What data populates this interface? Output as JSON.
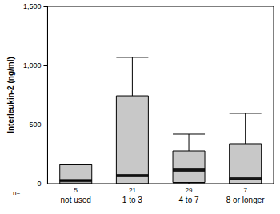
{
  "chart_data": {
    "type": "boxplot",
    "y_label": "Interleukin-2 (ng/ml)",
    "categories": [
      "not used",
      "1 to 3",
      "4 to 7",
      "8 or longer"
    ],
    "count_label": "n=",
    "counts": [
      5,
      21,
      29,
      7
    ],
    "boxes": [
      [
        0,
        0,
        25,
        160,
        160
      ],
      [
        0,
        0,
        68,
        743,
        1068
      ],
      [
        0,
        10,
        115,
        277,
        419
      ],
      [
        0,
        0,
        40,
        338,
        595
      ]
    ],
    "color": "#c8c8c8",
    "ylim": [
      0,
      1500
    ],
    "yticks": [
      0,
      500,
      {
        "value": 1000,
        "label": "1,000"
      },
      {
        "value": 1500,
        "label": "1,500"
      }
    ],
    "grid": false
  }
}
